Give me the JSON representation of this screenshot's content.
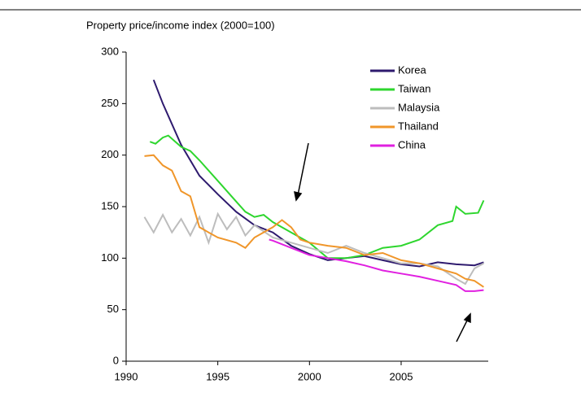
{
  "chart_data": {
    "type": "line",
    "title": "Property price/income index (2000=100)",
    "xlim": [
      1990,
      2009.75
    ],
    "xticks": [
      1990,
      1995,
      2000,
      2005
    ],
    "ylim": [
      0,
      300
    ],
    "yticks": [
      0,
      50,
      100,
      150,
      200,
      250,
      300
    ],
    "grid": false,
    "legend": "top-right",
    "series": [
      {
        "name": "Korea",
        "color": "#2e1a6e",
        "x": [
          1991.5,
          1992,
          1993,
          1994,
          1995,
          1996,
          1997,
          1998,
          1999,
          2000,
          2001,
          2002,
          2003,
          2004,
          2005,
          2006,
          2007,
          2008,
          2009,
          2009.5
        ],
        "values": [
          273,
          250,
          210,
          180,
          162,
          145,
          132,
          125,
          112,
          104,
          98,
          100,
          102,
          98,
          94,
          92,
          96,
          94,
          93,
          96
        ]
      },
      {
        "name": "Taiwan",
        "color": "#2ed62e",
        "x": [
          1991.3,
          1991.6,
          1992,
          1992.3,
          1993,
          1993.5,
          1994,
          1995,
          1996,
          1996.5,
          1997,
          1997.5,
          1998,
          1999,
          2000,
          2001,
          2002,
          2003,
          2004,
          2005,
          2006,
          2007,
          2007.8,
          2008,
          2008.5,
          2009.2,
          2009.5
        ],
        "values": [
          213,
          211,
          217,
          219,
          208,
          204,
          195,
          175,
          155,
          145,
          140,
          142,
          135,
          125,
          115,
          100,
          100,
          103,
          110,
          112,
          118,
          132,
          136,
          150,
          143,
          144,
          156
        ]
      },
      {
        "name": "Malaysia",
        "color": "#bdbdbd",
        "x": [
          1991,
          1991.5,
          1992,
          1992.5,
          1993,
          1993.5,
          1994,
          1994.5,
          1995,
          1995.5,
          1996,
          1996.5,
          1997,
          1998,
          1999,
          2000,
          2001,
          2002,
          2003,
          2004,
          2005,
          2006,
          2007,
          2008,
          2008.5,
          2009,
          2009.5
        ],
        "values": [
          140,
          125,
          142,
          125,
          138,
          122,
          140,
          115,
          143,
          128,
          140,
          122,
          132,
          120,
          115,
          110,
          105,
          112,
          105,
          100,
          95,
          95,
          92,
          80,
          75,
          90,
          95
        ]
      },
      {
        "name": "Thailand",
        "color": "#f0962a",
        "x": [
          1991,
          1991.5,
          1992,
          1992.5,
          1993,
          1993.5,
          1994,
          1994.5,
          1995,
          1996,
          1996.5,
          1997,
          1998,
          1998.5,
          1999,
          1999.5,
          2000,
          2001,
          2002,
          2003,
          2004,
          2005,
          2006,
          2007,
          2008,
          2008.5,
          2009,
          2009.5
        ],
        "values": [
          199,
          200,
          190,
          185,
          165,
          160,
          130,
          125,
          120,
          115,
          110,
          120,
          130,
          137,
          130,
          118,
          115,
          112,
          110,
          103,
          105,
          98,
          95,
          90,
          85,
          80,
          78,
          72
        ]
      },
      {
        "name": "China",
        "color": "#e020e0",
        "x": [
          1997.8,
          1998,
          1999,
          2000,
          2001,
          2002,
          2003,
          2004,
          2005,
          2006,
          2007,
          2008,
          2008.5,
          2009,
          2009.5
        ],
        "values": [
          118,
          117,
          110,
          103,
          100,
          97,
          93,
          88,
          85,
          82,
          78,
          74,
          68,
          68,
          69
        ]
      }
    ]
  }
}
